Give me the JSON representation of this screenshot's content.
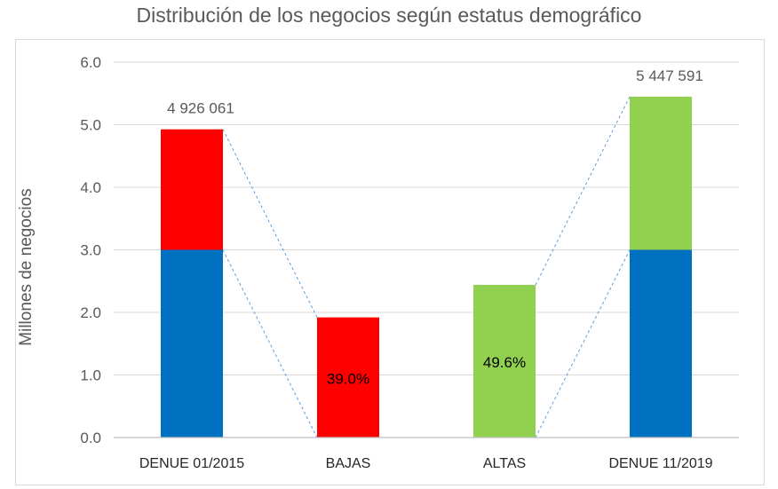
{
  "chart_data": {
    "type": "bar",
    "title": "Distribución de los negocios según estatus demográfico",
    "xlabel": "",
    "ylabel": "Millones de negocios",
    "ylim": [
      0,
      6
    ],
    "yticks": [
      "0.0",
      "1.0",
      "2.0",
      "3.0",
      "4.0",
      "5.0",
      "6.0"
    ],
    "categories": [
      "DENUE 01/2015",
      "BAJAS",
      "ALTAS",
      "DENUE 11/2019"
    ],
    "bars": [
      {
        "category": "DENUE 01/2015",
        "segments": [
          {
            "start": 0,
            "end": 3.0,
            "color": "#0070C0"
          },
          {
            "start": 3.0,
            "end": 4.926061,
            "color": "#FF0000"
          }
        ],
        "label": "4 926 061",
        "label_position": "above"
      },
      {
        "category": "BAJAS",
        "segments": [
          {
            "start": 0,
            "end": 1.92,
            "color": "#FF0000"
          }
        ],
        "label": "39.0%",
        "label_position": "inside"
      },
      {
        "category": "ALTAS",
        "segments": [
          {
            "start": 0,
            "end": 2.44,
            "color": "#92D050"
          }
        ],
        "label": "49.6%",
        "label_position": "inside"
      },
      {
        "category": "DENUE 11/2019",
        "segments": [
          {
            "start": 0,
            "end": 3.0,
            "color": "#0070C0"
          },
          {
            "start": 3.0,
            "end": 5.447591,
            "color": "#92D050"
          }
        ],
        "label": "5 447 591",
        "label_position": "above"
      }
    ],
    "connectors": [
      {
        "from_bar": 0,
        "from_value": 4.926061,
        "to_bar": 1,
        "to_value": 1.92
      },
      {
        "from_bar": 0,
        "from_value": 3.0,
        "to_bar": 1,
        "to_value": 0
      },
      {
        "from_bar": 2,
        "from_value": 2.44,
        "to_bar": 3,
        "to_value": 5.447591
      },
      {
        "from_bar": 2,
        "from_value": 0,
        "to_bar": 3,
        "to_value": 3.0
      }
    ],
    "colors": {
      "grid": "#D9D9D9",
      "axis": "#BFBFBF",
      "text": "#595959",
      "connector": "#5B9BD5"
    }
  }
}
